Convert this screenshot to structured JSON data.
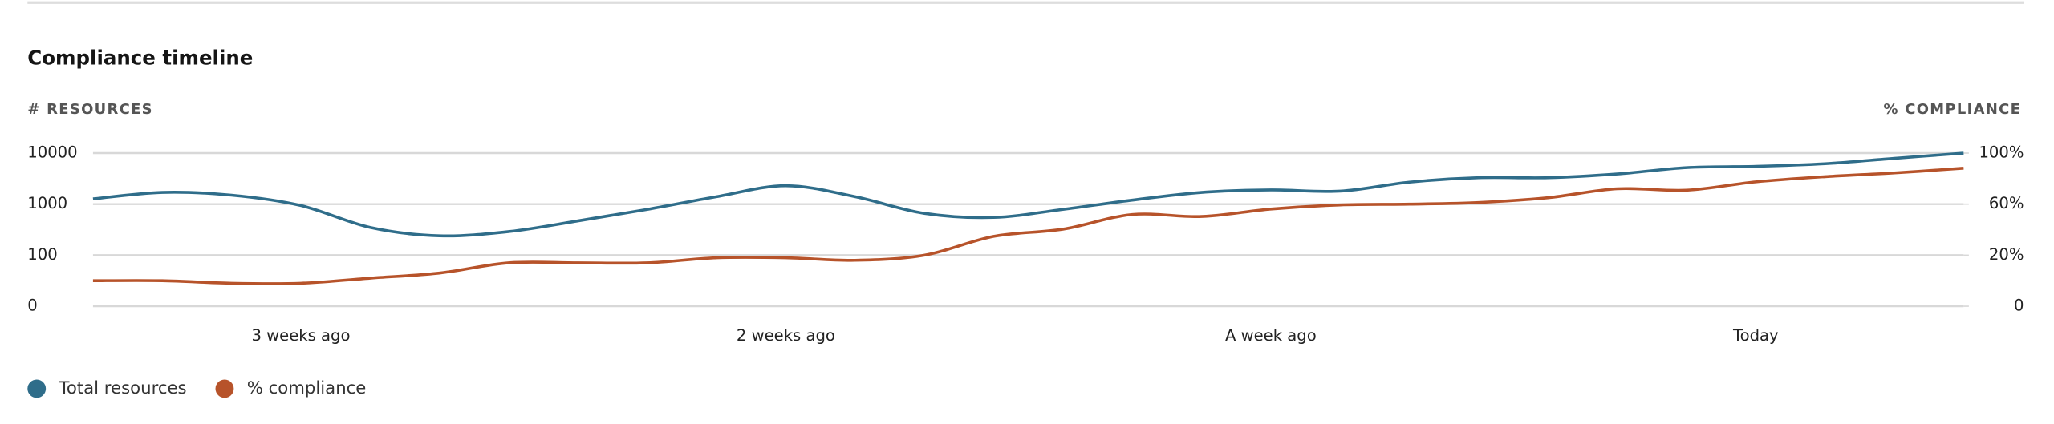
{
  "chart_data": {
    "type": "line",
    "title": "Compliance timeline",
    "y_label": "# RESOURCES",
    "y2_label": "% COMPLIANCE",
    "categories": [
      null,
      null,
      null,
      "3 weeks ago",
      null,
      null,
      null,
      null,
      null,
      null,
      "2 weeks ago",
      null,
      null,
      null,
      null,
      null,
      null,
      "A week ago",
      null,
      null,
      null,
      null,
      null,
      null,
      "Today",
      null,
      null,
      null
    ],
    "series": [
      {
        "name": "Total resources",
        "color": "#2f6d8a",
        "axis": "y",
        "values": [
          1270,
          1700,
          1500,
          940,
          350,
          240,
          290,
          470,
          790,
          1400,
          2300,
          1400,
          660,
          550,
          790,
          1200,
          1700,
          1900,
          1800,
          2700,
          3300,
          3300,
          3900,
          5200,
          5500,
          6200,
          7900,
          10000
        ]
      },
      {
        "name": "% compliance",
        "color": "#b7532a",
        "axis": "y2",
        "values": [
          10,
          10,
          9,
          9,
          11,
          13,
          17,
          17,
          17,
          19,
          19,
          18,
          20,
          30,
          35,
          48,
          46,
          54,
          59,
          60,
          61,
          64,
          70,
          69,
          75,
          79,
          82,
          86
        ]
      }
    ],
    "ylim": [
      0,
      10000
    ],
    "yticks": [
      0,
      100,
      1000,
      10000
    ],
    "y2lim": [
      0,
      100
    ],
    "y2ticks": [
      0,
      {
        "value": 20,
        "label": "20%"
      },
      {
        "value": 60,
        "label": "60%"
      },
      {
        "value": 100,
        "label": "100%"
      }
    ],
    "grid": true,
    "legend": "bottom-left"
  }
}
